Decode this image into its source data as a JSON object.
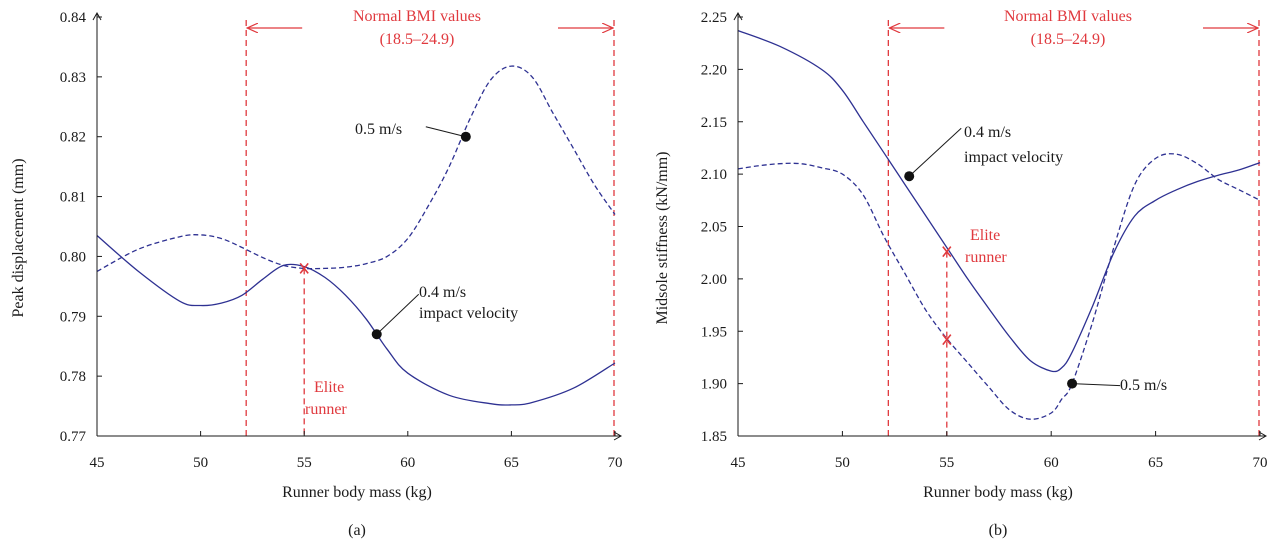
{
  "colors": {
    "series": "#2e3192",
    "accent": "#e0393e",
    "axis": "#1a1a1a"
  },
  "chart_data": [
    {
      "type": "line",
      "panel_label": "(a)",
      "xlabel": "Runner body mass (kg)",
      "ylabel": "Peak displacement (mm)",
      "xlim": [
        45,
        70
      ],
      "ylim": [
        0.77,
        0.84
      ],
      "x_ticks": [
        "45",
        "50",
        "55",
        "60",
        "65",
        "70"
      ],
      "y_ticks": [
        "0.77",
        "0.78",
        "0.79",
        "0.80",
        "0.81",
        "0.82",
        "0.83",
        "0.84"
      ],
      "series": [
        {
          "style": "solid",
          "x": [
            45,
            47,
            49,
            50,
            51,
            52,
            53,
            54,
            55,
            56,
            57,
            58,
            59,
            60,
            62,
            64,
            65,
            66,
            68,
            70
          ],
          "y": [
            0.8035,
            0.7975,
            0.7925,
            0.7918,
            0.7922,
            0.7935,
            0.7962,
            0.7985,
            0.7983,
            0.7965,
            0.7935,
            0.7895,
            0.7845,
            0.7805,
            0.7768,
            0.7754,
            0.7752,
            0.7756,
            0.778,
            0.7822
          ]
        },
        {
          "style": "dashed",
          "x": [
            45,
            47,
            49,
            50,
            51,
            52,
            53,
            54,
            55,
            56,
            57,
            58,
            59,
            60,
            61,
            62,
            63,
            64,
            65,
            66,
            67,
            68,
            69,
            70
          ],
          "y": [
            0.7975,
            0.8012,
            0.8033,
            0.8036,
            0.803,
            0.8015,
            0.7998,
            0.7985,
            0.798,
            0.798,
            0.7982,
            0.7988,
            0.8,
            0.803,
            0.8085,
            0.815,
            0.823,
            0.8295,
            0.8318,
            0.83,
            0.824,
            0.818,
            0.812,
            0.807
          ]
        }
      ],
      "annotations": {
        "solid_label": [
          "0.4 m/s",
          "impact velocity"
        ],
        "dashed_label": "0.5 m/s",
        "bmi_title": "Normal BMI values",
        "bmi_range": "(18.5–24.9)",
        "elite_label": [
          "Elite",
          "runner"
        ],
        "elite_marker": "x"
      },
      "solid_marker": {
        "x": 58.5,
        "y": 0.787
      },
      "dashed_marker": {
        "x": 62.8,
        "y": 0.82
      },
      "elite_point": {
        "x": 55,
        "y": 0.798
      },
      "bmi_lines_x": [
        52.2,
        70
      ]
    },
    {
      "type": "line",
      "panel_label": "(b)",
      "xlabel": "Runner body mass (kg)",
      "ylabel": "Midsole stiffness (kN/mm)",
      "xlim": [
        45,
        70
      ],
      "ylim": [
        1.85,
        2.25
      ],
      "x_ticks": [
        "45",
        "50",
        "55",
        "60",
        "65",
        "70"
      ],
      "y_ticks": [
        "1.85",
        "1.90",
        "1.95",
        "2.00",
        "2.05",
        "2.10",
        "2.15",
        "2.20",
        "2.25"
      ],
      "series": [
        {
          "style": "solid",
          "x": [
            45,
            47,
            49,
            50,
            51,
            52,
            53,
            54,
            55,
            56,
            57,
            58,
            59,
            60,
            60.5,
            61,
            62,
            63,
            64,
            65,
            66,
            67,
            68,
            69,
            70
          ],
          "y": [
            2.237,
            2.222,
            2.2,
            2.18,
            2.15,
            2.12,
            2.09,
            2.06,
            2.03,
            2.0,
            1.972,
            1.945,
            1.922,
            1.912,
            1.915,
            1.93,
            1.975,
            2.025,
            2.06,
            2.075,
            2.085,
            2.093,
            2.099,
            2.104,
            2.111
          ]
        },
        {
          "style": "dashed",
          "x": [
            45,
            46,
            47,
            48,
            49,
            50,
            51,
            52,
            53,
            54,
            55,
            56,
            57,
            58,
            59,
            60,
            60.5,
            61,
            62,
            63,
            64,
            65,
            66,
            67,
            68,
            69,
            70
          ],
          "y": [
            2.105,
            2.108,
            2.11,
            2.11,
            2.106,
            2.1,
            2.08,
            2.04,
            2.005,
            1.97,
            1.943,
            1.92,
            1.897,
            1.875,
            1.866,
            1.872,
            1.885,
            1.9,
            1.96,
            2.03,
            2.09,
            2.115,
            2.119,
            2.11,
            2.095,
            2.085,
            2.075
          ]
        }
      ],
      "annotations": {
        "solid_label": [
          "0.4 m/s",
          "impact velocity"
        ],
        "dashed_label": "0.5 m/s",
        "bmi_title": "Normal BMI values",
        "bmi_range": "(18.5–24.9)",
        "elite_label": [
          "Elite",
          "runner"
        ],
        "elite_marker": "x"
      },
      "solid_marker": {
        "x": 53.2,
        "y": 2.098
      },
      "dashed_marker": {
        "x": 61.0,
        "y": 1.9
      },
      "elite_points": [
        {
          "x": 55,
          "y": 2.026
        },
        {
          "x": 55,
          "y": 1.942
        }
      ],
      "bmi_lines_x": [
        52.2,
        70
      ]
    }
  ]
}
